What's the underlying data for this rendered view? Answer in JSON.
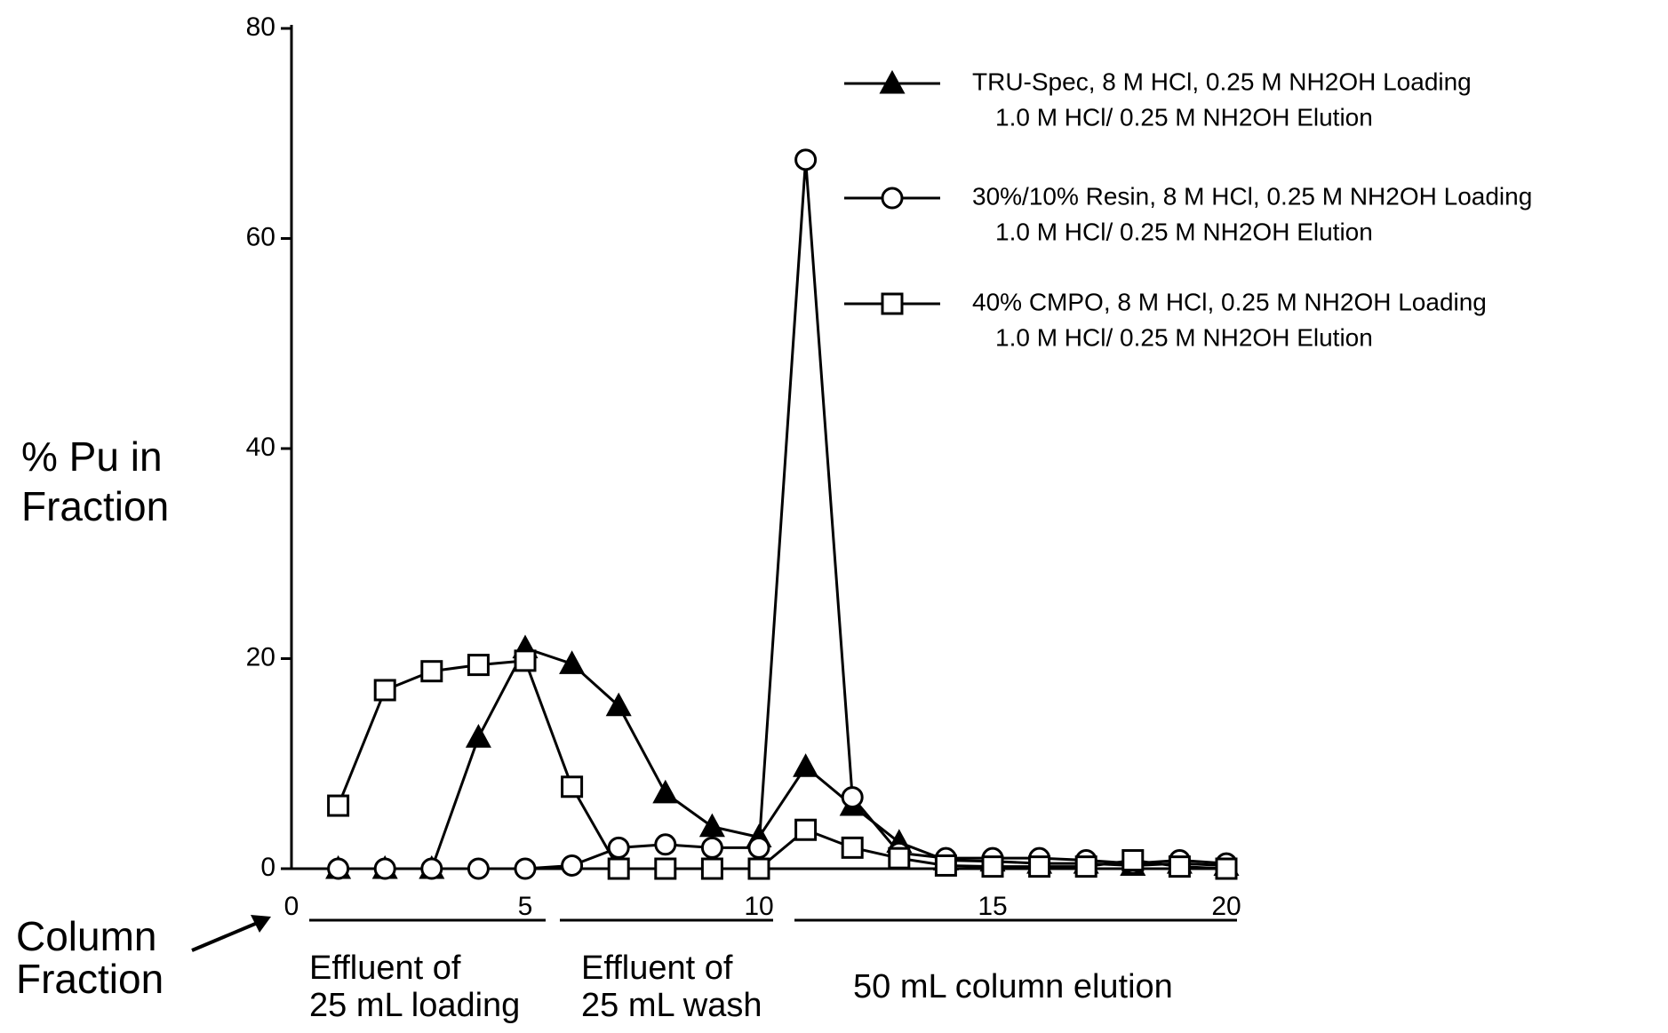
{
  "chart_data": {
    "type": "line",
    "ylabel": [
      "% Pu in",
      "Fraction"
    ],
    "xlabel": [
      "Column",
      "Fraction"
    ],
    "x": [
      1,
      2,
      3,
      4,
      5,
      6,
      7,
      8,
      9,
      10,
      11,
      12,
      13,
      14,
      15,
      16,
      17,
      18,
      19,
      20
    ],
    "series": [
      {
        "name": "TRU-Spec, 8 M HCl, 0.25 M NH2OH Loading",
        "description": "1.0 M HCl/ 0.25 M NH2OH Elution",
        "color": "#000000",
        "marker": "triangle",
        "values": [
          0,
          0,
          0,
          12.5,
          21,
          19.5,
          15.5,
          7.2,
          4,
          3,
          9.7,
          6,
          2.5,
          0.8,
          0.7,
          0.5,
          0.5,
          0.3,
          0.5,
          0.3
        ]
      },
      {
        "name": "30%/10% Resin, 8 M HCl, 0.25 M NH2OH Loading",
        "description": "1.0 M HCl/ 0.25 M NH2OH Elution",
        "color": "#000000",
        "marker": "circle",
        "values": [
          0,
          0,
          0,
          0,
          0,
          0.3,
          2,
          2.3,
          2,
          2,
          67.5,
          6.8,
          1.5,
          1,
          1,
          1,
          0.8,
          0.5,
          0.8,
          0.5
        ]
      },
      {
        "name": "40% CMPO, 8 M HCl, 0.25 M NH2OH Loading",
        "description": "1.0 M HCl/ 0.25 M NH2OH Elution",
        "color": "#000000",
        "marker": "square",
        "values": [
          6,
          17,
          18.8,
          19.4,
          19.8,
          7.8,
          0,
          0,
          0,
          0,
          3.7,
          2,
          1,
          0.3,
          0.2,
          0.2,
          0.2,
          0.8,
          0.2,
          0
        ]
      }
    ],
    "xlim": [
      0,
      20
    ],
    "xticks": [
      0,
      5,
      10,
      15,
      20
    ],
    "ylim": [
      0,
      80
    ],
    "yticks": [
      0,
      20,
      40,
      60,
      80
    ],
    "annotations": [
      {
        "lines": [
          "Effluent of",
          "25 mL loading"
        ]
      },
      {
        "lines": [
          "Effluent of",
          "25 mL wash"
        ]
      },
      {
        "lines": [
          "50 mL column elution"
        ]
      }
    ]
  }
}
